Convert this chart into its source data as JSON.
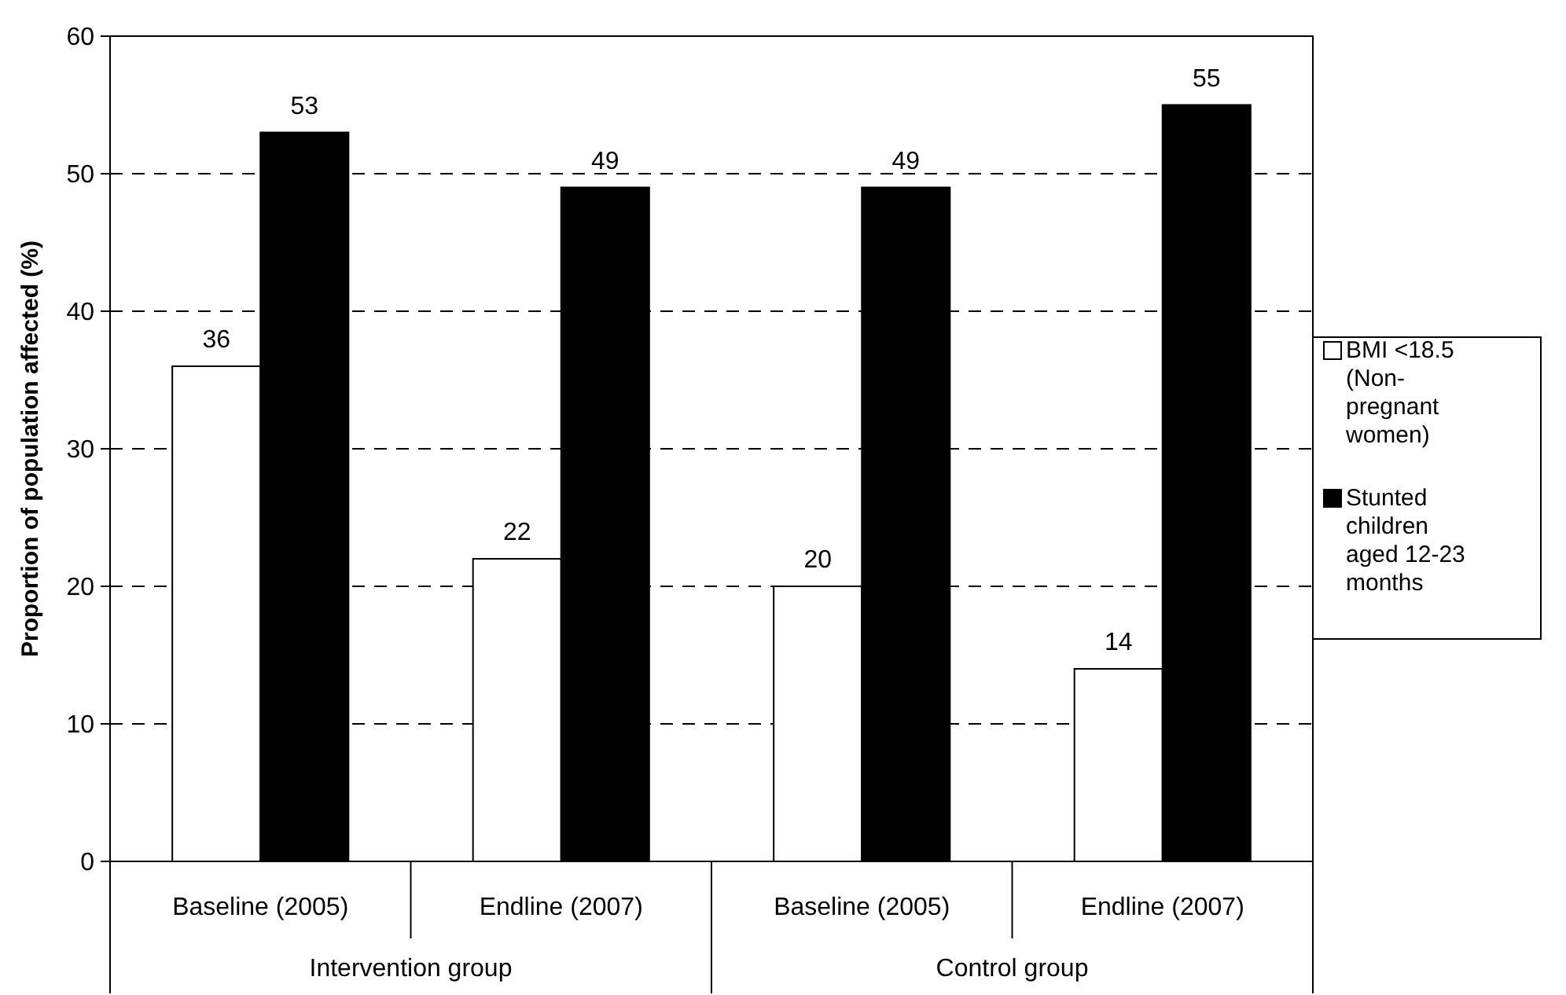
{
  "chart_data": {
    "type": "bar",
    "ylabel": "Proportion of population affected (%)",
    "categories": [
      "Baseline (2005)",
      "Endline (2007)",
      "Baseline (2005)",
      "Endline (2007)"
    ],
    "series": [
      {
        "name": "BMI <18.5 (Non-pregnant women)",
        "color": "#ffffff",
        "values": [
          36,
          22,
          20,
          14
        ]
      },
      {
        "name": "Stunted children aged 12-23 months",
        "color": "#000000",
        "values": [
          53,
          49,
          49,
          55
        ]
      }
    ],
    "ylim": [
      0,
      60
    ],
    "yticks": [
      0,
      10,
      20,
      30,
      40,
      50,
      60
    ],
    "grid": "y",
    "line_style": "dashed",
    "legend": "right",
    "data_labels": true,
    "annotations": [
      "Intervention group",
      "Control group"
    ]
  }
}
